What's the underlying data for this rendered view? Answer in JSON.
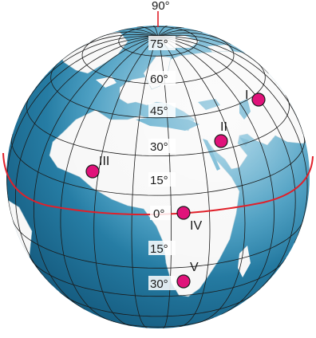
{
  "north_pole_label": "90°",
  "latitude_labels": [
    {
      "key": "lat75",
      "text": "75°"
    },
    {
      "key": "lat60",
      "text": "60°"
    },
    {
      "key": "lat45",
      "text": "45°"
    },
    {
      "key": "lat30n",
      "text": "30°"
    },
    {
      "key": "lat15n",
      "text": "15°"
    },
    {
      "key": "lat0",
      "text": "0°"
    },
    {
      "key": "lat15s",
      "text": "15°"
    },
    {
      "key": "lat30s",
      "text": "30°"
    }
  ],
  "points": [
    {
      "key": "p1",
      "label": "I"
    },
    {
      "key": "p2",
      "label": "II"
    },
    {
      "key": "p3",
      "label": "III"
    },
    {
      "key": "p4",
      "label": "IV"
    },
    {
      "key": "p5",
      "label": "V"
    }
  ],
  "colors": {
    "ocean": "#2f8fb8",
    "land": "#ffffff",
    "grid": "#1a1a1a",
    "equator": "#e0202a",
    "point_fill": "#e0127a",
    "point_stroke": "#1a1a1a"
  }
}
